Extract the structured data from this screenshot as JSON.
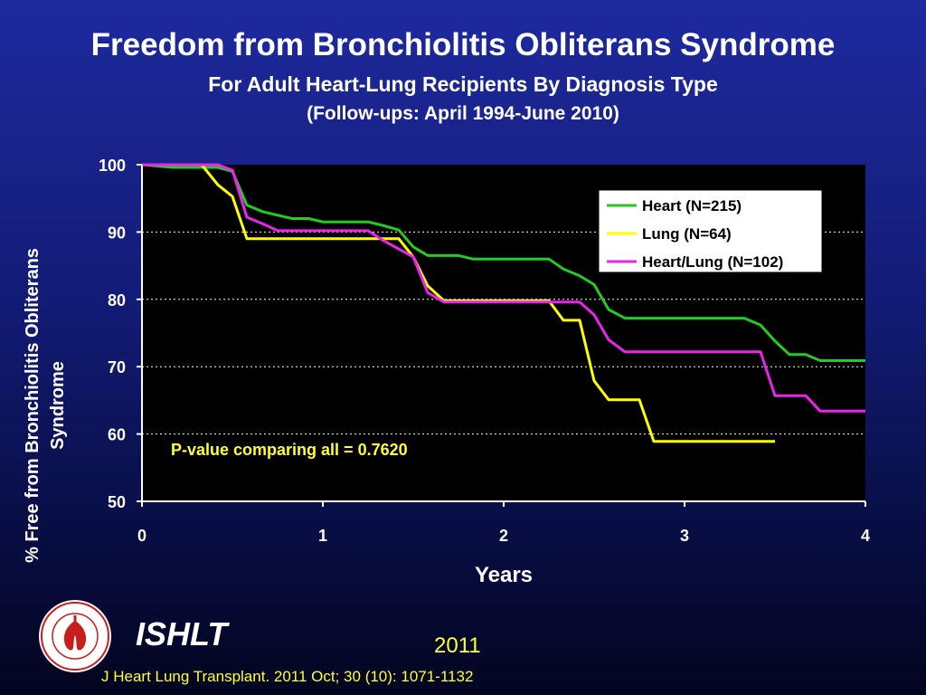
{
  "header": {
    "title": "Freedom from Bronchiolitis Obliterans Syndrome",
    "subtitle": "For Adult Heart-Lung Recipients By Diagnosis Type",
    "subtitle2": "(Follow-ups: April 1994-June 2010)"
  },
  "footer": {
    "brand": "ISHLT",
    "year": "2011",
    "citation": "J Heart Lung Transplant. 2011 Oct; 30 (10): 1071-1132",
    "logo_icon": "ishlt-society-seal-icon"
  },
  "chart_data": {
    "type": "line",
    "xlabel": "Years",
    "ylabel": [
      "% Free from Bronchiolitis Obliterans",
      "Syndrome"
    ],
    "xlim": [
      0,
      4
    ],
    "ylim": [
      50,
      100
    ],
    "xticks": [
      "0",
      "1",
      "2",
      "3",
      "4"
    ],
    "yticks": [
      "50",
      "60",
      "70",
      "80",
      "90",
      "100"
    ],
    "grid": "horizontal dotted",
    "legend_position": "top-right",
    "annotation": "P-value comparing all = 0.7620",
    "colors": {
      "plot_bg": "#000000",
      "axis_text": "#ffffff",
      "annotation": "#ffff33"
    },
    "series": [
      {
        "name": "Heart (N=215)",
        "color": "#22cc22",
        "x": [
          0,
          0.17,
          0.33,
          0.42,
          0.5,
          0.58,
          0.67,
          0.75,
          0.83,
          0.92,
          1.0,
          1.25,
          1.33,
          1.42,
          1.5,
          1.58,
          1.75,
          1.83,
          2.0,
          2.25,
          2.33,
          2.42,
          2.5,
          2.58,
          2.67,
          2.75,
          3.0,
          3.33,
          3.42,
          3.5,
          3.58,
          3.67,
          3.75,
          4.0
        ],
        "y": [
          100,
          99.6,
          99.6,
          99.6,
          99.0,
          94.0,
          93.0,
          92.5,
          92.0,
          92.0,
          91.5,
          91.5,
          91.0,
          90.3,
          87.8,
          86.5,
          86.5,
          86.0,
          86.0,
          86.0,
          84.5,
          83.5,
          82.2,
          78.5,
          77.2,
          77.2,
          77.2,
          77.2,
          76.2,
          73.8,
          71.8,
          71.8,
          70.9,
          70.9
        ]
      },
      {
        "name": "Lung (N=64)",
        "color": "#ffff00",
        "x": [
          0,
          0.33,
          0.42,
          0.5,
          0.58,
          0.67,
          1.0,
          1.33,
          1.42,
          1.5,
          1.58,
          1.67,
          2.0,
          2.25,
          2.33,
          2.42,
          2.5,
          2.58,
          2.75,
          2.83,
          3.0,
          3.5
        ],
        "y": [
          100,
          100,
          97.0,
          95.3,
          89.0,
          89.0,
          89.0,
          89.0,
          89.0,
          86.3,
          82.0,
          79.8,
          79.8,
          79.8,
          76.9,
          76.9,
          67.9,
          65.1,
          65.1,
          58.9,
          58.9,
          58.9
        ]
      },
      {
        "name": "Heart/Lung (N=102)",
        "color": "#ee22ee",
        "x": [
          0,
          0.42,
          0.5,
          0.58,
          0.67,
          0.75,
          1.0,
          1.25,
          1.33,
          1.5,
          1.58,
          1.67,
          2.0,
          2.25,
          2.42,
          2.5,
          2.58,
          2.67,
          3.0,
          3.42,
          3.5,
          3.58,
          3.67,
          3.75,
          4.0
        ],
        "y": [
          100,
          100,
          99.2,
          92.2,
          91.2,
          90.2,
          90.2,
          90.2,
          88.8,
          86.3,
          81.0,
          79.6,
          79.6,
          79.6,
          79.6,
          77.7,
          74.0,
          72.2,
          72.2,
          72.2,
          65.7,
          65.7,
          65.7,
          63.4,
          63.4
        ]
      }
    ]
  }
}
